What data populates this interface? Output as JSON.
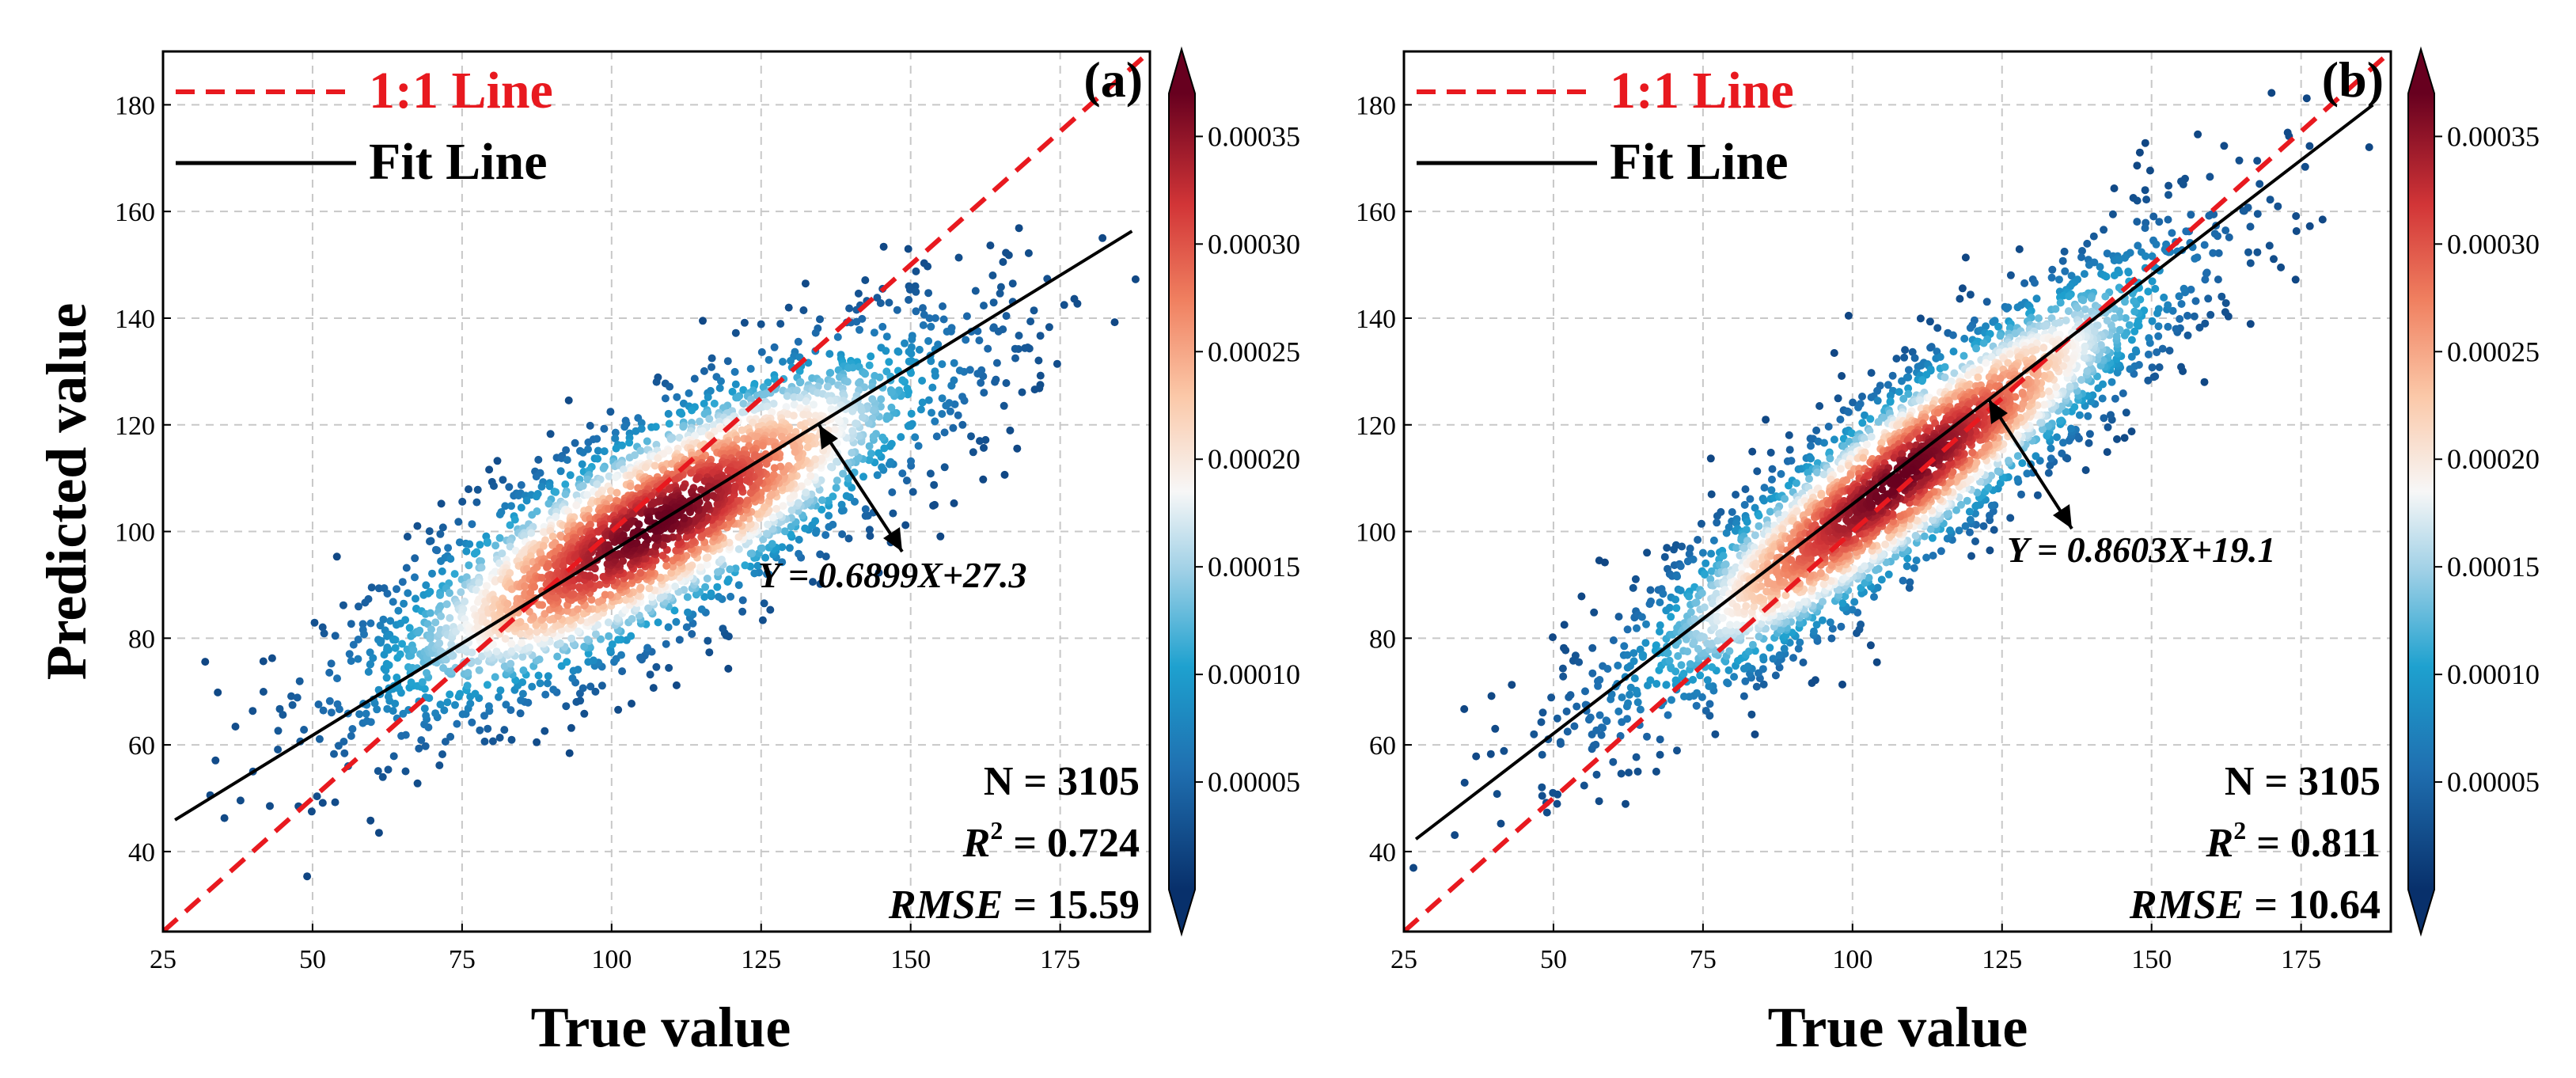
{
  "chart_data": [
    {
      "type": "scatter",
      "panel_label": "(a)",
      "xlabel": "True value",
      "ylabel": "Predicted value",
      "xlim": [
        25,
        190
      ],
      "ylim": [
        25,
        190
      ],
      "xticks": [
        25,
        50,
        75,
        100,
        125,
        150,
        175
      ],
      "yticks": [
        40,
        60,
        80,
        100,
        120,
        140,
        160,
        180
      ],
      "grid": true,
      "legend": {
        "location": "top-left",
        "entries": [
          "1:1 Line",
          "Fit Line"
        ]
      },
      "one_to_one_line": {
        "slope": 1,
        "intercept": 0,
        "color": "#e8191f"
      },
      "fit_line": {
        "slope": 0.6899,
        "intercept": 27.3,
        "x_range": [
          27,
          187
        ],
        "color": "#000000"
      },
      "equation_text": "Y = 0.6899X+27.3",
      "stats": {
        "n": "N = 3105",
        "r2_label": "R",
        "r2_exp": "2",
        "r2_value": " = 0.724",
        "rmse_label": "RMSE",
        "rmse_value": " = 15.59"
      },
      "density_cloud": {
        "center": [
          107,
          101
        ],
        "semi_axis_along": 30,
        "semi_axis_across": 9,
        "angle_deg": 34,
        "n_points": 3105,
        "seed": 7
      },
      "colorbar": {
        "min": 0,
        "max": 0.00037,
        "ticks": [
          "0.00005",
          "0.00010",
          "0.00015",
          "0.00020",
          "0.00025",
          "0.00030",
          "0.00035"
        ],
        "colormap": "RdBu_r"
      }
    },
    {
      "type": "scatter",
      "panel_label": "(b)",
      "xlabel": "True value",
      "ylabel": "",
      "xlim": [
        25,
        190
      ],
      "ylim": [
        25,
        190
      ],
      "xticks": [
        25,
        50,
        75,
        100,
        125,
        150,
        175
      ],
      "yticks": [
        40,
        60,
        80,
        100,
        120,
        140,
        160,
        180
      ],
      "grid": true,
      "legend": {
        "location": "top-left",
        "entries": [
          "1:1 Line",
          "Fit Line"
        ]
      },
      "one_to_one_line": {
        "slope": 1,
        "intercept": 0,
        "color": "#e8191f"
      },
      "fit_line": {
        "slope": 0.8603,
        "intercept": 19.1,
        "x_range": [
          27,
          187
        ],
        "color": "#000000"
      },
      "equation_text": "Y = 0.8603X+19.1",
      "stats": {
        "n": "N = 3105",
        "r2_label": "R",
        "r2_exp": "2",
        "r2_value": " = 0.811",
        "rmse_label": "RMSE",
        "rmse_value": " = 10.64"
      },
      "density_cloud": {
        "center": [
          108,
          110
        ],
        "semi_axis_along": 32,
        "semi_axis_across": 7,
        "angle_deg": 42,
        "n_points": 3105,
        "seed": 13
      },
      "colorbar": {
        "min": 0,
        "max": 0.00037,
        "ticks": [
          "0.00005",
          "0.00010",
          "0.00015",
          "0.00020",
          "0.00025",
          "0.00030",
          "0.00035"
        ],
        "colormap": "RdBu_r"
      }
    }
  ]
}
